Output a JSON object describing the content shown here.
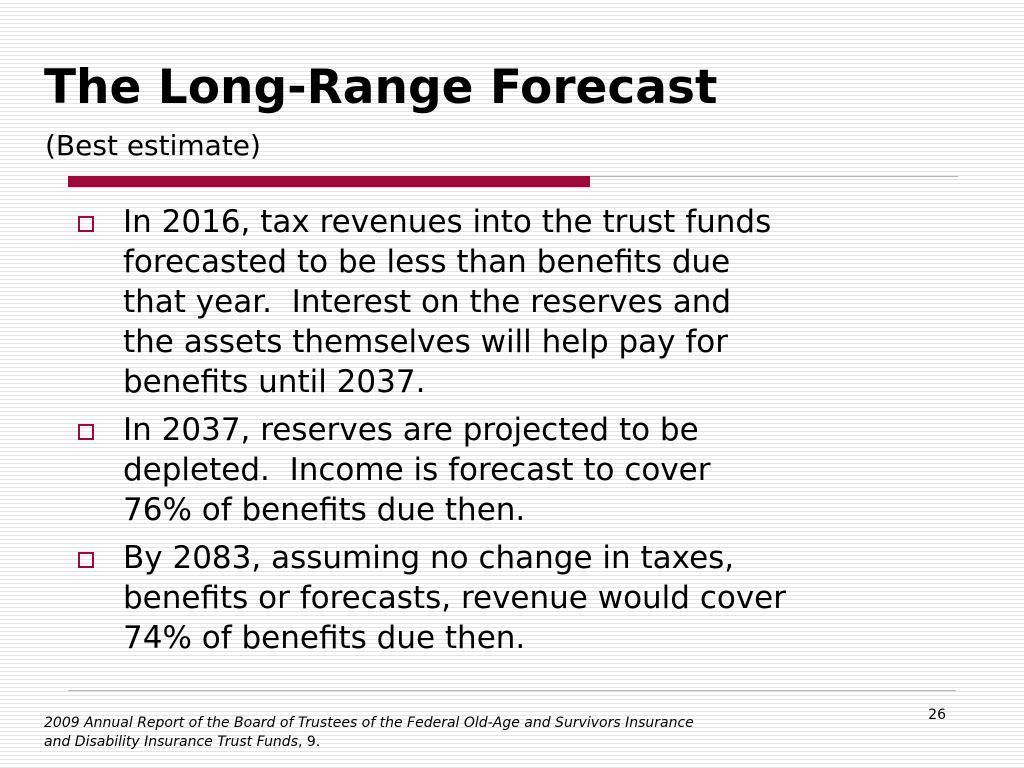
{
  "slide": {
    "title": "The Long-Range Forecast",
    "subtitle": "(Best estimate)",
    "accent_color": "#9b0a3a",
    "bullets": [
      {
        "icon": "hollow-square-bullet-icon",
        "lines": [
          "In 2016, tax revenues into the trust funds",
          "forecasted to be less than benefits due",
          "that year.  Interest on the reserves and",
          "the assets themselves will help pay for",
          "benefits until 2037."
        ]
      },
      {
        "icon": "hollow-square-bullet-icon",
        "lines": [
          "In 2037, reserves are projected to be",
          "depleted.  Income is forecast to cover",
          "76% of benefits due then."
        ]
      },
      {
        "icon": "hollow-square-bullet-icon",
        "lines": [
          "By 2083, assuming no change in taxes,",
          "benefits or forecasts, revenue would cover",
          "74% of benefits due then."
        ]
      }
    ],
    "page_number": "26",
    "footnote": {
      "line1": "2009 Annual Report of the Board of Trustees of the Federal Old-Age and Survivors Insurance",
      "line2_italic": "and Disability Insurance Trust Funds",
      "line2_rest": ", 9."
    }
  }
}
